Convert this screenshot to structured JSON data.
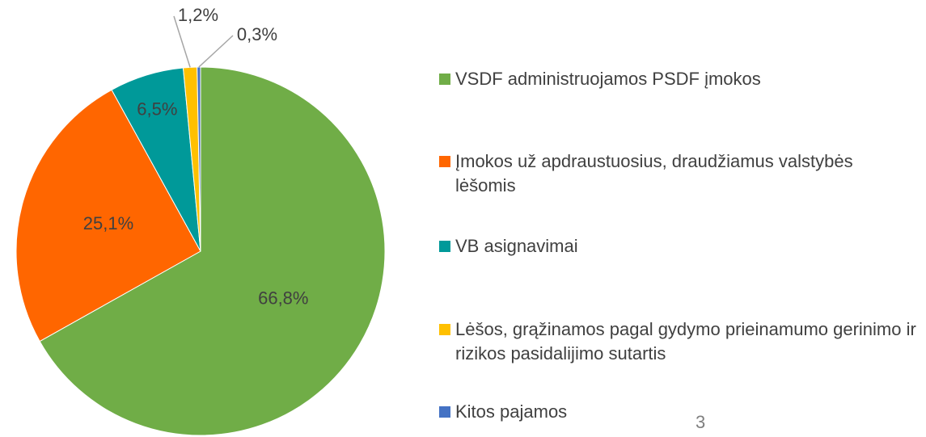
{
  "chart_data": {
    "type": "pie",
    "series": [
      {
        "name": "VSDF administruojamos PSDF įmokos",
        "color": "#70ad47"
      },
      {
        "name": "Įmokos už apdraustuosius, draudžiamus valstybės lėšomis",
        "color": "#ff6600"
      },
      {
        "name": "VB asignavimai",
        "color": "#009999"
      },
      {
        "name": "Lėšos, grąžinamos pagal gydymo prieinamumo gerinimo ir rizikos pasidalijimo sutartis",
        "color": "#ffc000"
      },
      {
        "name": "Kitos pajamos",
        "color": "#4472c4"
      }
    ],
    "values": [
      66.8,
      25.1,
      6.5,
      1.2,
      0.3
    ],
    "value_labels": [
      "66,8%",
      "25,1%",
      "6,5%",
      "1,2%",
      "0,3%"
    ],
    "legend": "right"
  },
  "slide_number": "3"
}
